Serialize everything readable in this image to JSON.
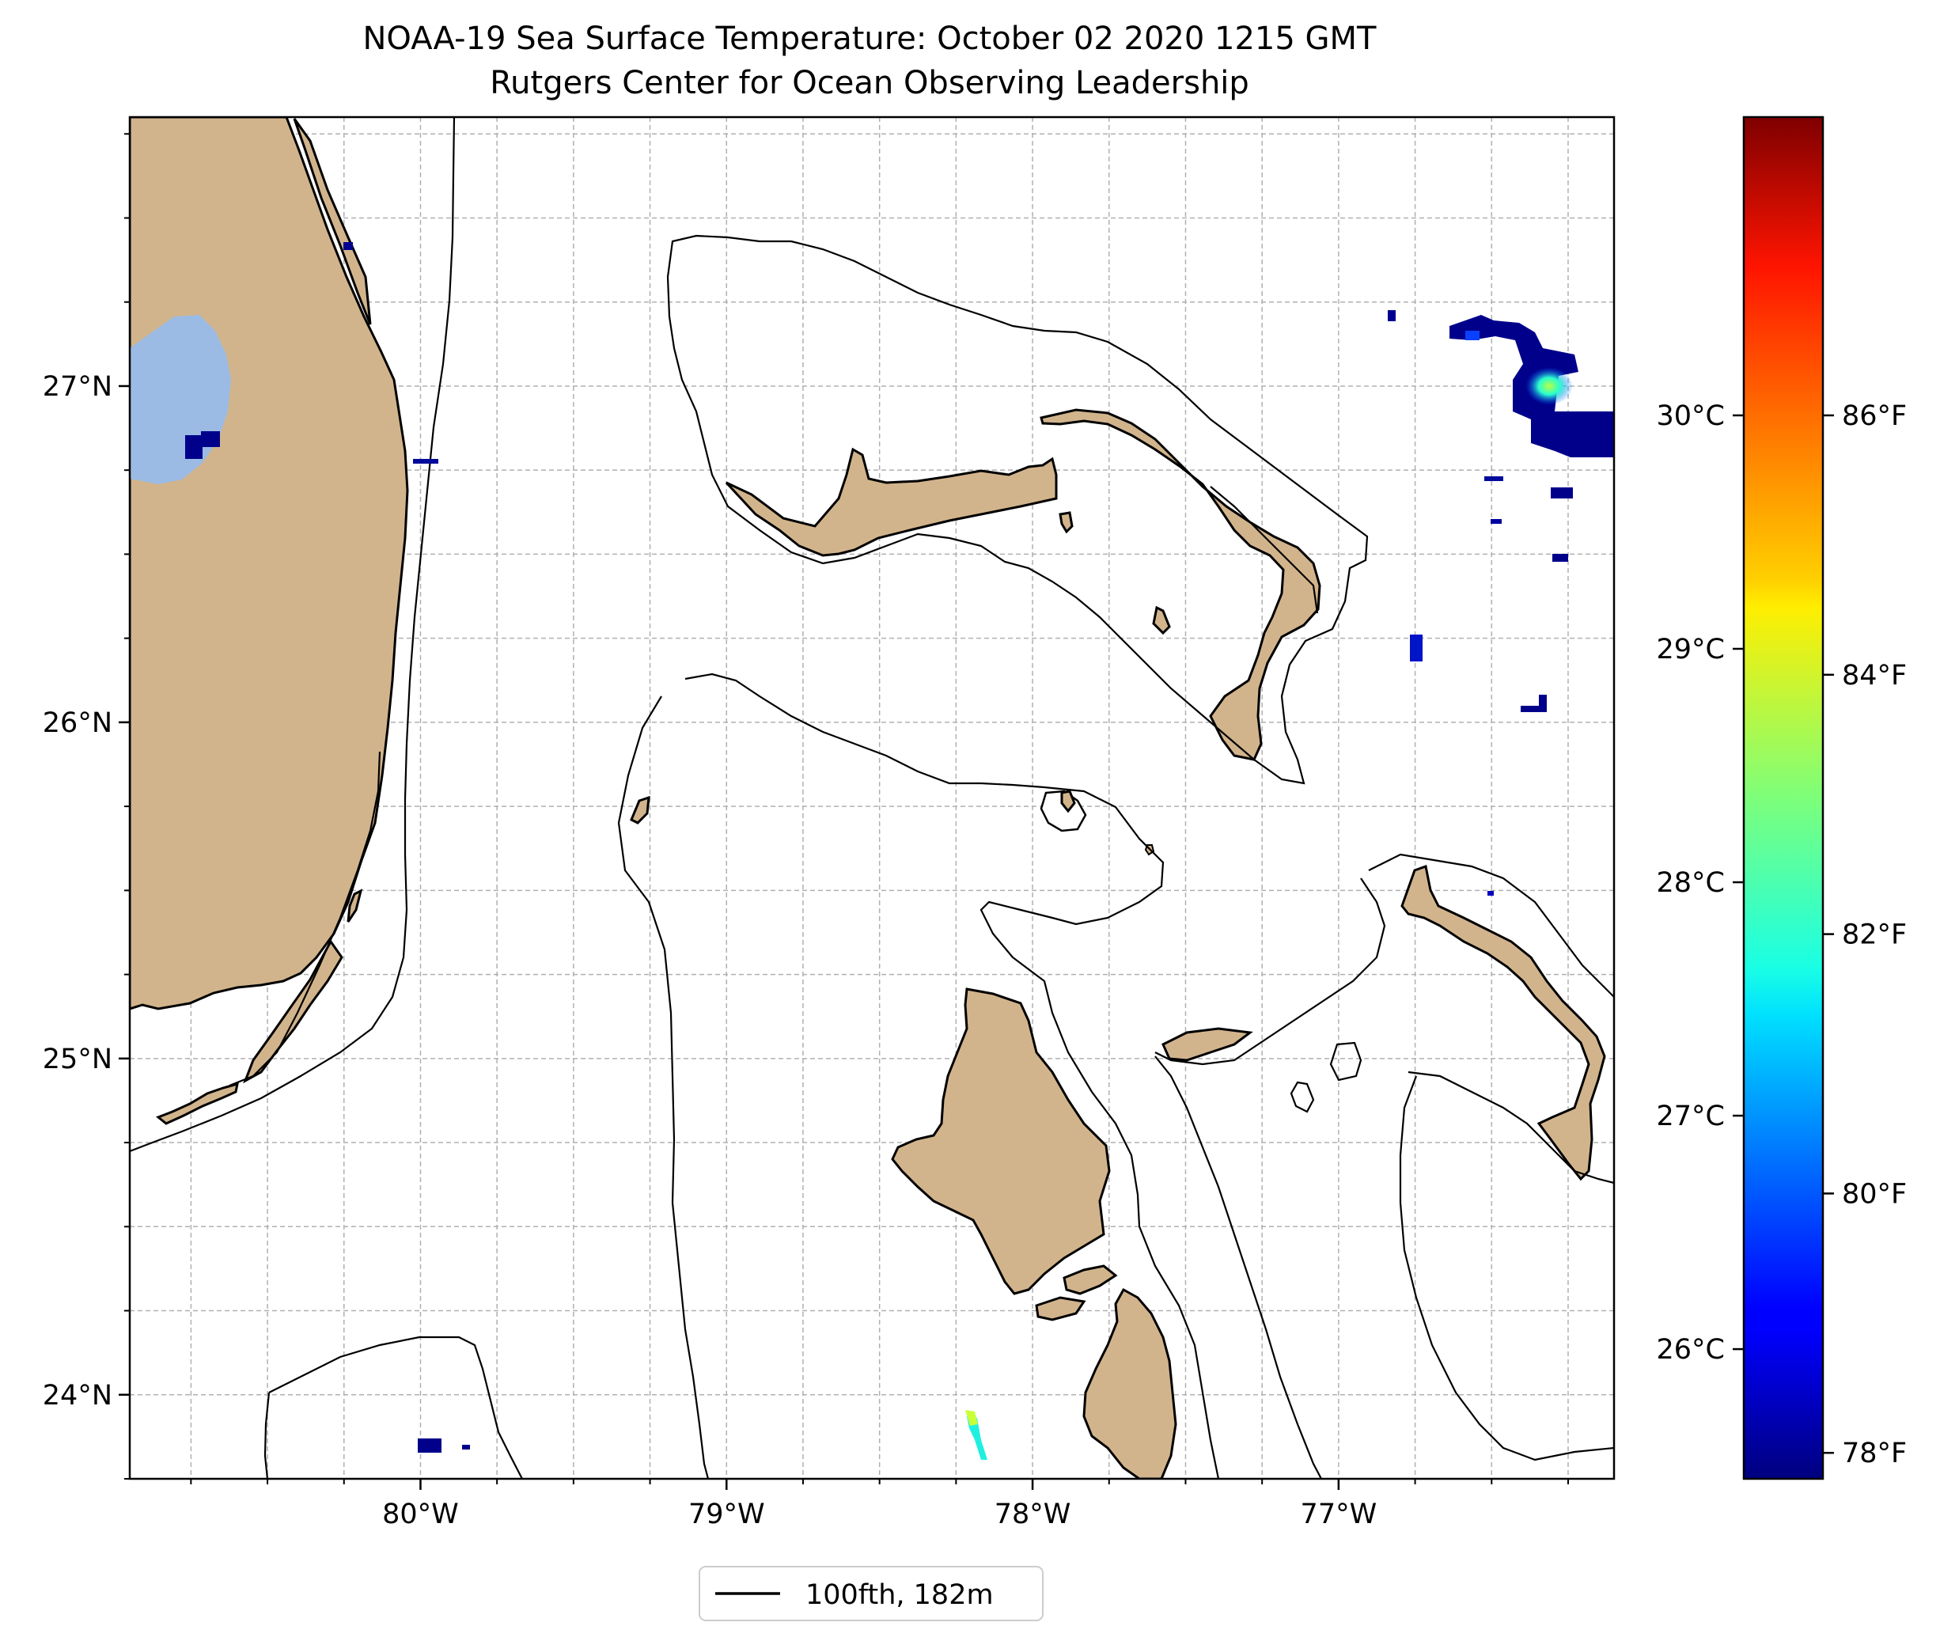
{
  "title": {
    "line1": "NOAA-19 Sea Surface Temperature: October 02 2020 1215 GMT",
    "line2": "Rutgers Center for Ocean Observing Leadership"
  },
  "map": {
    "lon_range": [
      -80.95,
      -76.1
    ],
    "lat_range": [
      23.75,
      27.8
    ],
    "lon_ticks": [
      {
        "value": -80,
        "label": "80°W"
      },
      {
        "value": -79,
        "label": "79°W"
      },
      {
        "value": -78,
        "label": "78°W"
      },
      {
        "value": -77,
        "label": "77°W"
      }
    ],
    "lat_ticks": [
      {
        "value": 24,
        "label": "24°N"
      },
      {
        "value": 25,
        "label": "25°N"
      },
      {
        "value": 26,
        "label": "26°N"
      },
      {
        "value": 27,
        "label": "27°N"
      }
    ],
    "gridlines": true,
    "land_color": "#d2b48c",
    "lake_color": "#9bbbe4",
    "ocean_color": "#ffffff"
  },
  "colorbar": {
    "colormap": "jet",
    "range_f": [
      77.8,
      88.3
    ],
    "celsius_ticks": [
      {
        "value": 26,
        "label": "26°C"
      },
      {
        "value": 27,
        "label": "27°C"
      },
      {
        "value": 28,
        "label": "28°C"
      },
      {
        "value": 29,
        "label": "29°C"
      },
      {
        "value": 30,
        "label": "30°C"
      }
    ],
    "fahrenheit_ticks": [
      {
        "value": 78,
        "label": "78°F"
      },
      {
        "value": 80,
        "label": "80°F"
      },
      {
        "value": 82,
        "label": "82°F"
      },
      {
        "value": 84,
        "label": "84°F"
      },
      {
        "value": 86,
        "label": "86°F"
      }
    ]
  },
  "legend": {
    "entries": [
      {
        "label": "100fth, 182m",
        "color": "#000000"
      }
    ]
  }
}
